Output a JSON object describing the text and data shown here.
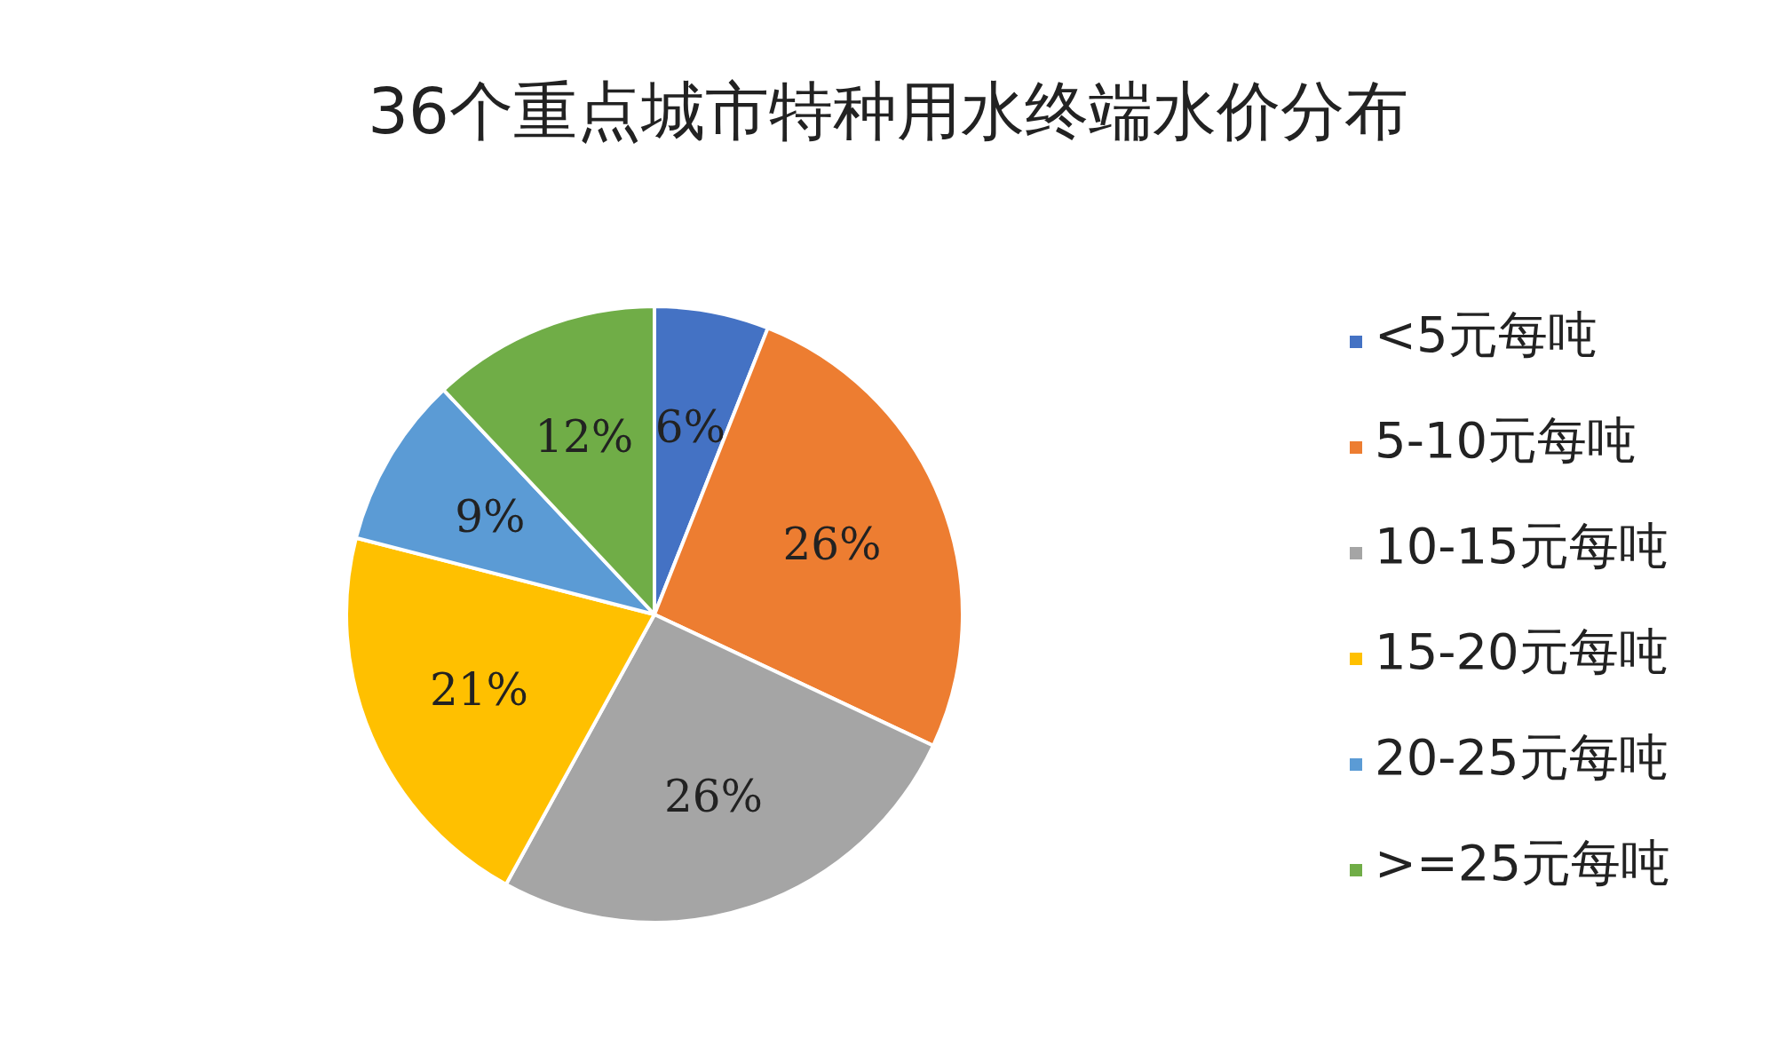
{
  "chart_data": {
    "type": "pie",
    "title": "36个重点城市特种用水终端水价分布",
    "categories": [
      "<5元每吨",
      "5-10元每吨",
      "10-15元每吨",
      "15-20元每吨",
      "20-25元每吨",
      ">=25元每吨"
    ],
    "values": [
      6,
      26,
      26,
      21,
      9,
      12
    ],
    "value_labels": [
      "6%",
      "26%",
      "26%",
      "21%",
      "9%",
      "12%"
    ],
    "colors": [
      "#4472c4",
      "#ed7d31",
      "#a5a5a5",
      "#ffc000",
      "#5b9bd5",
      "#70ad47"
    ],
    "legend": "right"
  }
}
